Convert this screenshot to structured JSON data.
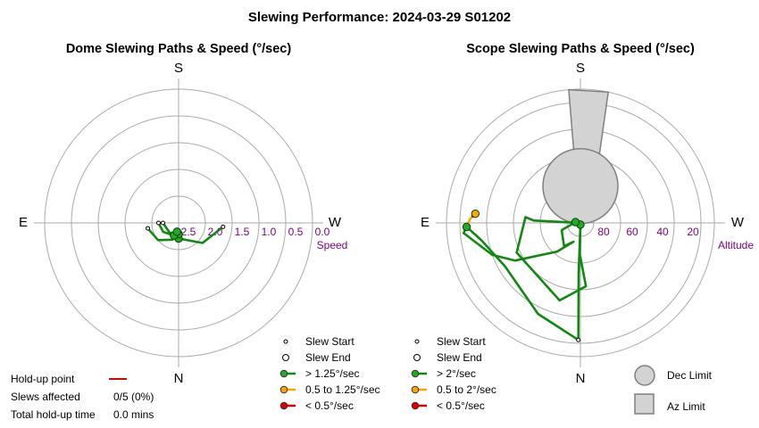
{
  "title": "Slewing Performance: 2024-03-29 S01202",
  "colors": {
    "fast": "#22aa22",
    "fast_line": "#118811",
    "medium": "#ffa500",
    "slow": "#dd0000",
    "grid": "#aaaaaa",
    "label": "#800080",
    "limit_fill": "#d3d3d3",
    "limit_stroke": "#808080"
  },
  "info": {
    "hold_label": "Hold-up point",
    "slews_label": "Slews affected",
    "slews_value": "0/5 (0%)",
    "total_label": "Total hold-up time",
    "total_value": "0.0 mins"
  },
  "chart_data": [
    {
      "type": "polar",
      "title": "Dome Slewing Paths & Speed (°/sec)",
      "compass": {
        "top": "S",
        "bottom": "N",
        "left": "E",
        "right": "W"
      },
      "radial_axis": {
        "name": "Speed",
        "ticks": [
          "2.5",
          "2.0",
          "1.5",
          "1.0",
          "0.5",
          "0.0"
        ],
        "range": [
          3.0,
          0.0
        ]
      },
      "legend": [
        "Slew Start",
        "Slew End",
        "> 1.25°/sec",
        "0.5 to 1.25°/sec",
        "< 0.5°/sec"
      ],
      "paths": [
        {
          "speed": "fast",
          "points": [
            [
              95,
              2.0
            ],
            [
              130,
              2.3
            ],
            [
              180,
              2.65
            ]
          ]
        },
        {
          "speed": "fast",
          "points": [
            [
              260,
              2.3
            ],
            [
              230,
              2.4
            ],
            [
              200,
              2.6
            ],
            [
              180,
              2.75
            ]
          ]
        },
        {
          "speed": "fast",
          "points": [
            [
              270,
              2.55
            ],
            [
              240,
              2.6
            ],
            [
              200,
              2.7
            ]
          ]
        },
        {
          "speed": "fast",
          "points": [
            [
              270,
              2.65
            ],
            [
              220,
              2.7
            ],
            [
              190,
              2.8
            ]
          ]
        }
      ],
      "ends": [
        [
          180,
          2.65
        ],
        [
          180,
          2.75
        ],
        [
          200,
          2.7
        ],
        [
          190,
          2.8
        ]
      ],
      "starts": [
        [
          95,
          2.0
        ],
        [
          260,
          2.3
        ],
        [
          270,
          2.55
        ],
        [
          270,
          2.65
        ]
      ]
    },
    {
      "type": "polar",
      "title": "Scope Slewing Paths & Speed (°/sec)",
      "compass": {
        "top": "S",
        "bottom": "N",
        "left": "E",
        "right": "W"
      },
      "radial_axis": {
        "name": "Altitude",
        "ticks": [
          "80",
          "60",
          "40",
          "20"
        ],
        "range": [
          90,
          10
        ]
      },
      "legend": [
        "Slew Start",
        "Slew End",
        "> 2°/sec",
        "0.5 to 2°/sec",
        "< 0.5°/sec"
      ],
      "limits": [
        "Dec Limit",
        "Az Limit"
      ],
      "paths": [
        {
          "speed": "fast",
          "points": [
            [
              271,
              88
            ],
            [
              273,
              62
            ],
            [
              276,
              57
            ],
            [
              245,
              48
            ],
            [
              195,
              42
            ],
            [
              175,
              52
            ],
            [
              181,
              71
            ],
            [
              181,
              82
            ],
            [
              181,
              89
            ]
          ]
        },
        {
          "speed": "fast",
          "points": [
            [
              181,
              89
            ],
            [
              182,
              60
            ],
            [
              181,
              20
            ],
            [
              205,
              30
            ],
            [
              240,
              38
            ],
            [
              260,
              30
            ],
            [
              268,
              22
            ]
          ]
        },
        {
          "speed": "fast",
          "points": [
            [
              268,
              22
            ],
            [
              265,
              20
            ],
            [
              250,
              34
            ],
            [
              240,
              45
            ],
            [
              219,
              68
            ],
            [
              200,
              78
            ],
            [
              215,
              73
            ],
            [
              249,
              78
            ],
            [
              280,
              87
            ]
          ]
        },
        {
          "speed": "medium",
          "points": [
            [
              268,
              22
            ],
            [
              272,
              24
            ],
            [
              275,
              27
            ]
          ]
        },
        {
          "speed": "slow",
          "points": [
            [
              275,
              27
            ],
            [
              274,
              26
            ]
          ]
        }
      ],
      "ends": [
        [
          181,
          89
        ],
        [
          268,
          22
        ],
        [
          280,
          87
        ],
        [
          275,
          27
        ]
      ],
      "starts": [
        [
          271,
          88
        ],
        [
          181,
          20
        ],
        [
          274,
          26
        ]
      ],
      "dec_limit": {
        "az": 0,
        "alt": 68,
        "radius_alt": 16
      },
      "az_limit": [
        [
          354,
          70
        ],
        [
          355,
          10
        ],
        [
          12,
          10
        ],
        [
          24,
          70
        ]
      ]
    }
  ]
}
